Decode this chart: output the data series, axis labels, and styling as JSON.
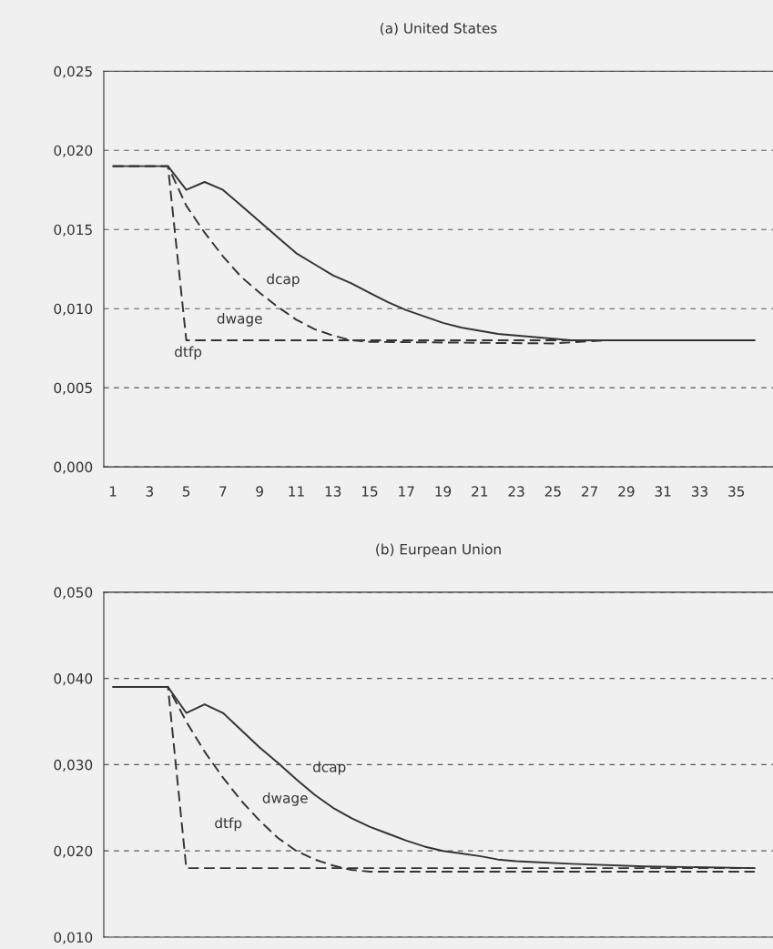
{
  "chart_data": [
    {
      "type": "line",
      "title": "(a) United States",
      "xlim": [
        0.5,
        37
      ],
      "xticks": [
        1,
        3,
        5,
        7,
        9,
        11,
        13,
        15,
        17,
        19,
        21,
        23,
        25,
        27,
        29,
        31,
        33,
        35
      ],
      "ylim": [
        0,
        0.025
      ],
      "yticks": [
        {
          "value": 0,
          "label": "0,000"
        },
        {
          "value": 0.005,
          "label": "0,005"
        },
        {
          "value": 0.01,
          "label": "0,010"
        },
        {
          "value": 0.015,
          "label": "0,015"
        },
        {
          "value": 0.02,
          "label": "0,020"
        },
        {
          "value": 0.025,
          "label": "0,025"
        }
      ],
      "grid": "y",
      "legend": false,
      "series": [
        {
          "color": "#333333",
          "line_style": "solid",
          "x": [
            1,
            4,
            5,
            6,
            7,
            8,
            9,
            10,
            11,
            12,
            13,
            14,
            15,
            16,
            17,
            18,
            19,
            20,
            21,
            22,
            23,
            24,
            25,
            26,
            28,
            36
          ],
          "values": [
            0.019,
            0.019,
            0.0175,
            0.018,
            0.0175,
            0.0165,
            0.0155,
            0.0145,
            0.0135,
            0.0128,
            0.0121,
            0.0116,
            0.011,
            0.0104,
            0.0099,
            0.0095,
            0.0091,
            0.0088,
            0.0086,
            0.0084,
            0.0083,
            0.0082,
            0.0081,
            0.008,
            0.008,
            0.008
          ]
        },
        {
          "color": "#333333",
          "line_style": "dashed",
          "x": [
            1,
            4,
            5,
            6,
            7,
            8,
            9,
            10,
            11,
            12,
            13,
            14,
            15,
            25,
            28,
            36
          ],
          "values": [
            0.019,
            0.019,
            0.0165,
            0.0148,
            0.0133,
            0.012,
            0.011,
            0.0101,
            0.0093,
            0.0087,
            0.0083,
            0.008,
            0.0079,
            0.0078,
            0.008,
            0.008
          ]
        },
        {
          "color": "#333333",
          "line_style": "dashed",
          "x": [
            1,
            4,
            5,
            36
          ],
          "values": [
            0.019,
            0.019,
            0.008,
            0.008
          ]
        }
      ],
      "annotations": [
        "dcap",
        "dwage",
        "dtfp"
      ]
    },
    {
      "type": "line",
      "title": "(b) Eurpean Union",
      "xlim": [
        0.5,
        37
      ],
      "tick_labels": "y",
      "ylim": [
        0.01,
        0.05
      ],
      "yticks": [
        {
          "value": 0.01,
          "label": "0,010"
        },
        {
          "value": 0.02,
          "label": "0,020"
        },
        {
          "value": 0.03,
          "label": "0,030"
        },
        {
          "value": 0.04,
          "label": "0,040"
        },
        {
          "value": 0.05,
          "label": "0,050"
        }
      ],
      "grid": "y",
      "legend": false,
      "series": [
        {
          "color": "#333333",
          "line_style": "solid",
          "x": [
            1,
            4,
            5,
            6,
            7,
            8,
            9,
            10,
            11,
            12,
            13,
            14,
            15,
            16,
            17,
            18,
            19,
            20,
            21,
            22,
            23,
            24,
            26,
            30,
            36
          ],
          "values": [
            0.039,
            0.039,
            0.036,
            0.037,
            0.036,
            0.034,
            0.032,
            0.0302,
            0.0283,
            0.0265,
            0.025,
            0.0238,
            0.0228,
            0.022,
            0.0212,
            0.0205,
            0.02,
            0.0197,
            0.0194,
            0.019,
            0.0188,
            0.0187,
            0.0185,
            0.0182,
            0.018
          ]
        },
        {
          "color": "#333333",
          "line_style": "dashed",
          "x": [
            1,
            4,
            5,
            6,
            7,
            8,
            9,
            10,
            11,
            12,
            13,
            14,
            15,
            36
          ],
          "values": [
            0.039,
            0.039,
            0.035,
            0.0315,
            0.0285,
            0.0258,
            0.0235,
            0.0215,
            0.02,
            0.019,
            0.0183,
            0.0178,
            0.0176,
            0.0176
          ]
        },
        {
          "color": "#333333",
          "line_style": "dashed",
          "x": [
            1,
            4,
            5,
            36
          ],
          "values": [
            0.039,
            0.039,
            0.018,
            0.018
          ]
        }
      ],
      "annotations": [
        "dcap",
        "dwage",
        "dtfp"
      ]
    }
  ]
}
